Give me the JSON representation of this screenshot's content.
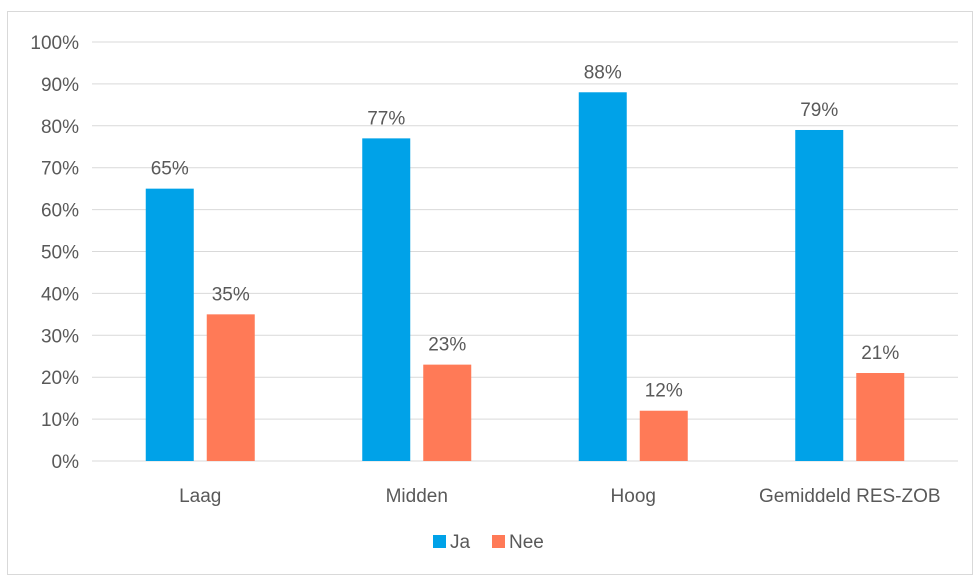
{
  "chart_data": {
    "type": "bar",
    "title": "",
    "xlabel": "",
    "ylabel": "",
    "categories": [
      "Laag",
      "Midden",
      "Hoog",
      "Gemiddeld RES-ZOB"
    ],
    "series": [
      {
        "name": "Ja",
        "values": [
          65,
          77,
          88,
          79
        ],
        "color": "#00a2e8"
      },
      {
        "name": "Nee",
        "values": [
          35,
          23,
          12,
          21
        ],
        "color": "#ff7a57"
      }
    ],
    "ylim": [
      0,
      100
    ],
    "yticks": [
      "0%",
      "10%",
      "20%",
      "30%",
      "40%",
      "50%",
      "60%",
      "70%",
      "80%",
      "90%",
      "100%"
    ],
    "value_suffix": "%",
    "grid": true,
    "gridline_color": "#d9d9d9",
    "legend_position": "bottom"
  }
}
